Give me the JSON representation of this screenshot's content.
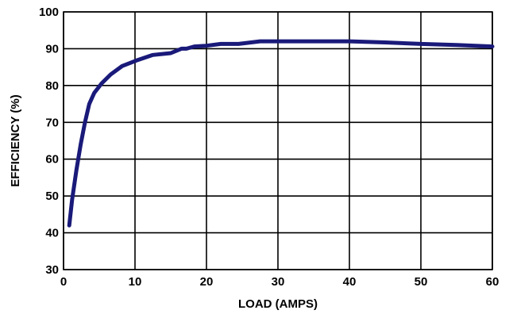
{
  "chart_data": {
    "type": "line",
    "xlabel": "LOAD (AMPS)",
    "ylabel": "EFFICIENCY (%)",
    "xlim": [
      0,
      60
    ],
    "ylim": [
      30,
      100
    ],
    "xticks": [
      0,
      10,
      20,
      30,
      40,
      50,
      60
    ],
    "yticks": [
      30,
      40,
      50,
      60,
      70,
      80,
      90,
      100
    ],
    "grid": true,
    "series": [
      {
        "color": "#1a1a7a",
        "x": [
          0.8,
          1.2,
          1.8,
          2.4,
          3.0,
          3.6,
          4.3,
          5.3,
          6.6,
          8.2,
          10.2,
          12.5,
          15.0,
          16.5,
          17.2,
          18.3,
          20.0,
          22.0,
          24.5,
          27.5,
          30,
          35,
          40,
          45,
          50,
          55,
          60
        ],
        "y": [
          42,
          49,
          57,
          64,
          70,
          75,
          78,
          80.5,
          83,
          85.3,
          86.8,
          88.3,
          88.8,
          90,
          90,
          90.6,
          90.8,
          91.3,
          91.3,
          92,
          92,
          92,
          92,
          91.7,
          91.3,
          91,
          90.6
        ]
      }
    ]
  }
}
